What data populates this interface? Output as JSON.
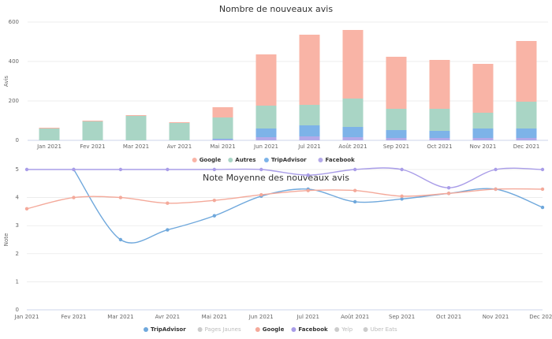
{
  "chart_data": [
    {
      "type": "bar",
      "stacked": true,
      "title": "Nombre de nouveaux avis",
      "y_label": "Avis",
      "categories": [
        "Jan 2021",
        "Fev 2021",
        "Mar 2021",
        "Avr 2021",
        "Mai 2021",
        "Jun 2021",
        "Jul 2021",
        "Août 2021",
        "Sep 2021",
        "Oct 2021",
        "Nov 2021",
        "Dec 2021"
      ],
      "series": [
        {
          "name": "Google",
          "color": "#f9b4a6",
          "values": [
            4,
            4,
            4,
            4,
            52,
            260,
            356,
            348,
            264,
            248,
            248,
            308
          ]
        },
        {
          "name": "Autres",
          "color": "#a9d5c5",
          "values": [
            60,
            96,
            124,
            88,
            108,
            116,
            104,
            144,
            108,
            112,
            80,
            136
          ]
        },
        {
          "name": "TripAdvisor",
          "color": "#7db3e8",
          "values": [
            0,
            0,
            0,
            0,
            4,
            44,
            56,
            52,
            40,
            36,
            48,
            48
          ]
        },
        {
          "name": "Facebook",
          "color": "#b3a9e8",
          "values": [
            0,
            0,
            0,
            0,
            4,
            16,
            20,
            16,
            12,
            12,
            12,
            12
          ]
        }
      ],
      "ylim": [
        0,
        600
      ],
      "yticks": [
        0,
        200,
        400,
        600
      ],
      "grid": true
    },
    {
      "type": "line",
      "smooth": true,
      "title": "Note Moyenne des nouveaux avis",
      "y_label": "Note",
      "categories": [
        "Jan 2021",
        "Fev 2021",
        "Mar 2021",
        "Avr 2021",
        "Mai 2021",
        "Jun 2021",
        "Jul 2021",
        "Août 2021",
        "Sep 2021",
        "Oct 2021",
        "Nov 2021",
        "Dec 2021"
      ],
      "series": [
        {
          "name": "TripAdvisor",
          "color": "#6fa8dc",
          "values": [
            null,
            5,
            2.5,
            2.85,
            3.35,
            4.05,
            4.3,
            3.85,
            3.95,
            4.15,
            4.3,
            3.65
          ]
        },
        {
          "name": "Pages Jaunes",
          "visible": false
        },
        {
          "name": "Google",
          "color": "#f4a99a",
          "values": [
            3.6,
            4.0,
            4.0,
            3.8,
            3.9,
            4.1,
            4.25,
            4.25,
            4.05,
            4.15,
            4.3,
            4.3
          ]
        },
        {
          "name": "Facebook",
          "color": "#a99de8",
          "values": [
            5,
            5,
            5,
            5,
            5,
            5,
            4.8,
            5,
            5,
            4.35,
            5,
            5
          ]
        },
        {
          "name": "Yelp",
          "visible": false
        },
        {
          "name": "Uber Eats",
          "visible": false
        }
      ],
      "ylim": [
        0,
        5
      ],
      "yticks": [
        0,
        1,
        2,
        3,
        4,
        5
      ],
      "grid": true
    }
  ]
}
